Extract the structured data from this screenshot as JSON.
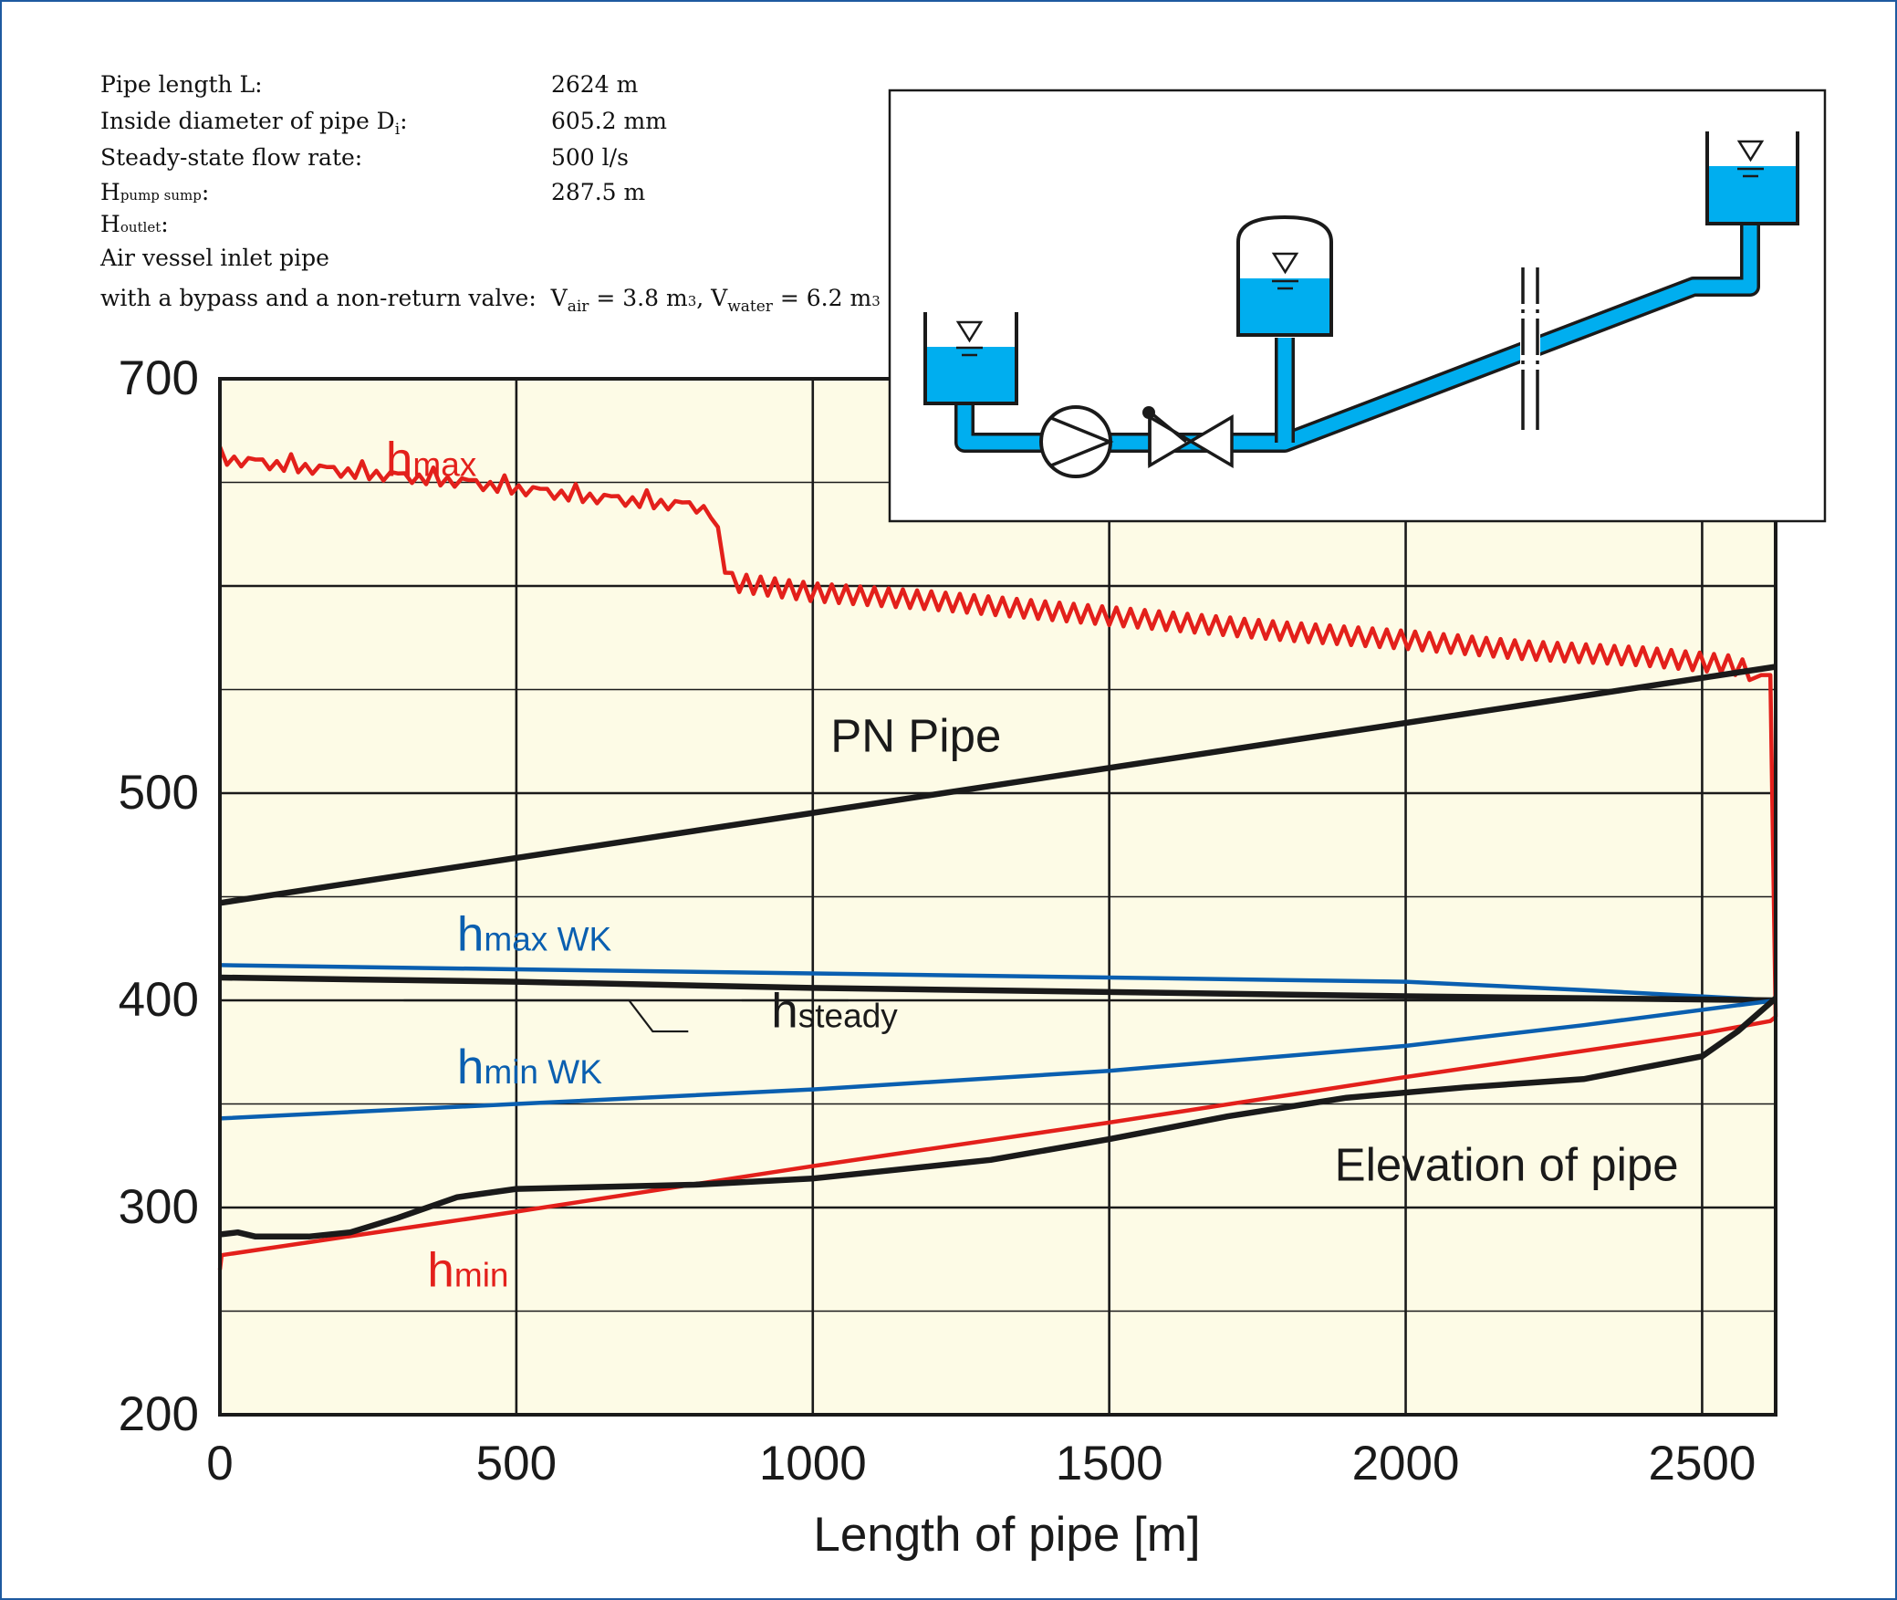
{
  "parameters": [
    {
      "label": "Pipe length L:",
      "value": "2624 m"
    },
    {
      "label_main": "Inside diameter of pipe D",
      "label_sub": "i",
      "label_end": ":",
      "value": "605.2 mm"
    },
    {
      "label": "Steady-state flow rate:",
      "value": "500 l/s"
    },
    {
      "label_main": "H",
      "label_small": "pump sump",
      "label_end": ":",
      "value": "287.5 m"
    },
    {
      "label_main": "H",
      "label_small": "outlet",
      "label_end": ":",
      "value": ""
    },
    {
      "label": "Air vessel inlet pipe"
    }
  ],
  "vessel_line": {
    "text": "with a bypass and a non-return valve:",
    "vair_label": "V",
    "vair_sub": "air",
    "vair_value": " = 3.8 m",
    "vair_unit_sup": "3",
    "sep": ",",
    "vwater_label": "V",
    "vwater_sub": "water",
    "vwater_value": " = 6.2 m",
    "vwater_unit_sup": "3"
  },
  "colors": {
    "red": "#e3201b",
    "blue": "#0a5fb0",
    "black": "#1a1a1a",
    "plot_bg": "#fdfbe6",
    "water": "#00aeef",
    "frame": "#1e5aa0"
  },
  "chart_data": {
    "type": "line",
    "xlabel": "Length of pipe [m]",
    "ylabel": "",
    "xlim": [
      0,
      2624
    ],
    "ylim": [
      200,
      700
    ],
    "x_ticks": [
      0,
      500,
      1000,
      1500,
      2000,
      2500
    ],
    "y_ticks": [
      200,
      300,
      400,
      500,
      700
    ],
    "grid": true,
    "series": [
      {
        "name": "hmax",
        "color": "#e3201b",
        "jagged": true,
        "x": [
          0,
          200,
          400,
          600,
          800,
          830,
          860,
          1000,
          1200,
          1400,
          1600,
          1800,
          2000,
          2200,
          2400,
          2550,
          2600,
          2615,
          2624
        ],
        "y": [
          661,
          655,
          650,
          643,
          638,
          635,
          602,
          597,
          593,
          588,
          583,
          578,
          574,
          569,
          566,
          562,
          557,
          557,
          392
        ]
      },
      {
        "name": "PN Pipe",
        "color": "#1a1a1a",
        "x": [
          0,
          2624
        ],
        "y": [
          447,
          561
        ]
      },
      {
        "name": "hmax WK",
        "color": "#0a5fb0",
        "x": [
          0,
          500,
          1000,
          1500,
          2000,
          2300,
          2624
        ],
        "y": [
          417,
          415,
          413,
          411,
          409,
          405,
          400
        ]
      },
      {
        "name": "hsteady",
        "color": "#1a1a1a",
        "x": [
          0,
          500,
          1000,
          1500,
          2000,
          2624
        ],
        "y": [
          411,
          409,
          406,
          404,
          402,
          400
        ]
      },
      {
        "name": "hmin WK",
        "color": "#0a5fb0",
        "x": [
          0,
          500,
          1000,
          1500,
          2000,
          2300,
          2624
        ],
        "y": [
          343,
          350,
          357,
          366,
          378,
          388,
          400
        ]
      },
      {
        "name": "hmin",
        "color": "#e3201b",
        "x": [
          0,
          3,
          500,
          1000,
          1500,
          2000,
          2500,
          2615,
          2624
        ],
        "y": [
          270,
          277,
          298,
          320,
          341,
          363,
          384,
          390,
          392
        ]
      },
      {
        "name": "Elevation of pipe",
        "color": "#1a1a1a",
        "x": [
          0,
          30,
          60,
          100,
          150,
          220,
          300,
          400,
          500,
          800,
          1000,
          1300,
          1500,
          1700,
          1900,
          2100,
          2300,
          2500,
          2560,
          2624
        ],
        "y": [
          287,
          288,
          286,
          286,
          286,
          288,
          295,
          305,
          309,
          311,
          314,
          323,
          333,
          344,
          353,
          358,
          362,
          373,
          385,
          401
        ]
      }
    ],
    "annotations": [
      {
        "text_main": "h",
        "text_sub": "max",
        "color": "#e3201b",
        "x": 280,
        "y": 653
      },
      {
        "text_main": "PN Pipe",
        "color": "#1a1a1a",
        "x": 1030,
        "y": 520
      },
      {
        "text_main": "h",
        "text_sub": "max WK",
        "color": "#0a5fb0",
        "x": 400,
        "y": 424
      },
      {
        "text_main": "h",
        "text_sub": "steady",
        "color": "#1a1a1a",
        "x": 930,
        "y": 387
      },
      {
        "text_main": "h",
        "text_sub": "min WK",
        "color": "#0a5fb0",
        "x": 400,
        "y": 360
      },
      {
        "text_main": "Elevation of pipe",
        "color": "#1a1a1a",
        "x": 1880,
        "y": 313
      },
      {
        "text_main": "h",
        "text_sub": "min",
        "color": "#e3201b",
        "x": 350,
        "y": 262
      }
    ]
  },
  "schematic": {
    "elements": [
      "pump-sump-tank",
      "pump-icon",
      "valve-icon",
      "air-vessel",
      "outlet-tank",
      "pipeline"
    ]
  }
}
